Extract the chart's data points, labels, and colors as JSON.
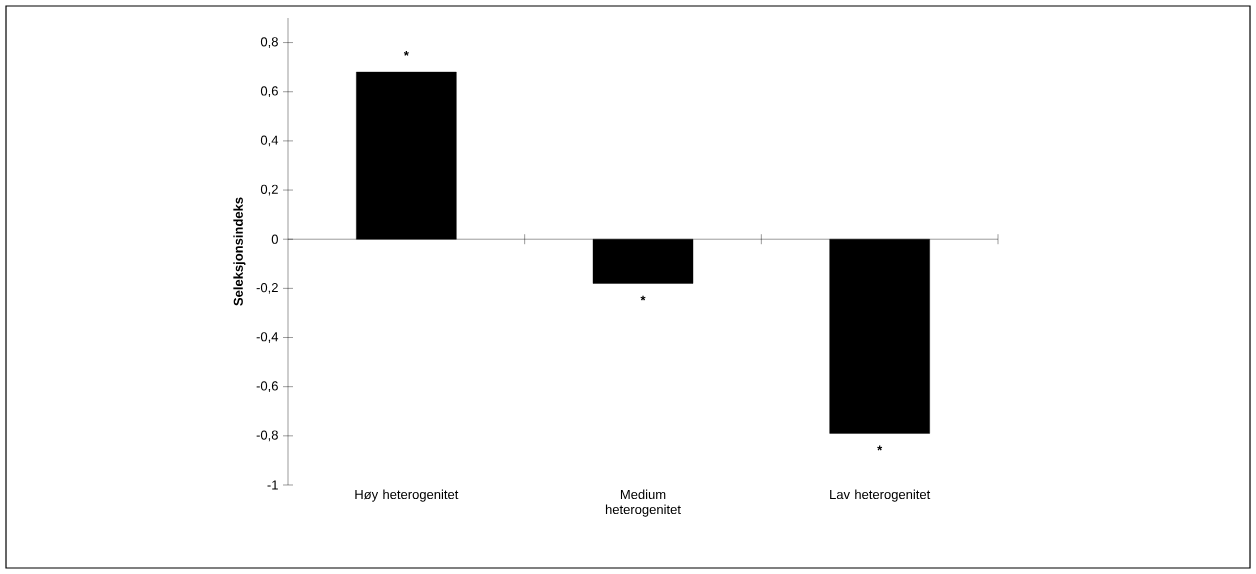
{
  "chart_data": {
    "type": "bar",
    "ylabel": "Seleksjonsindeks",
    "categories": [
      "Høy heterogenitet",
      "Medium heterogenitet",
      "Lav heterogenitet"
    ],
    "values": [
      0.68,
      -0.18,
      -0.79
    ],
    "color": "#000000",
    "ylim": [
      -1,
      0.9
    ],
    "yticks": [
      {
        "value": -1,
        "label": "-1"
      },
      {
        "value": -0.8,
        "label": "-0,8"
      },
      {
        "value": -0.6,
        "label": "-0,6"
      },
      {
        "value": -0.4,
        "label": "-0,4"
      },
      {
        "value": -0.2,
        "label": "-0,2"
      },
      {
        "value": 0,
        "label": "0"
      },
      {
        "value": 0.2,
        "label": "0,2"
      },
      {
        "value": 0.4,
        "label": "0,4"
      },
      {
        "value": 0.6,
        "label": "0,6"
      },
      {
        "value": 0.8,
        "label": "0,8"
      }
    ],
    "annotations": [
      "*",
      "*",
      "*"
    ]
  }
}
